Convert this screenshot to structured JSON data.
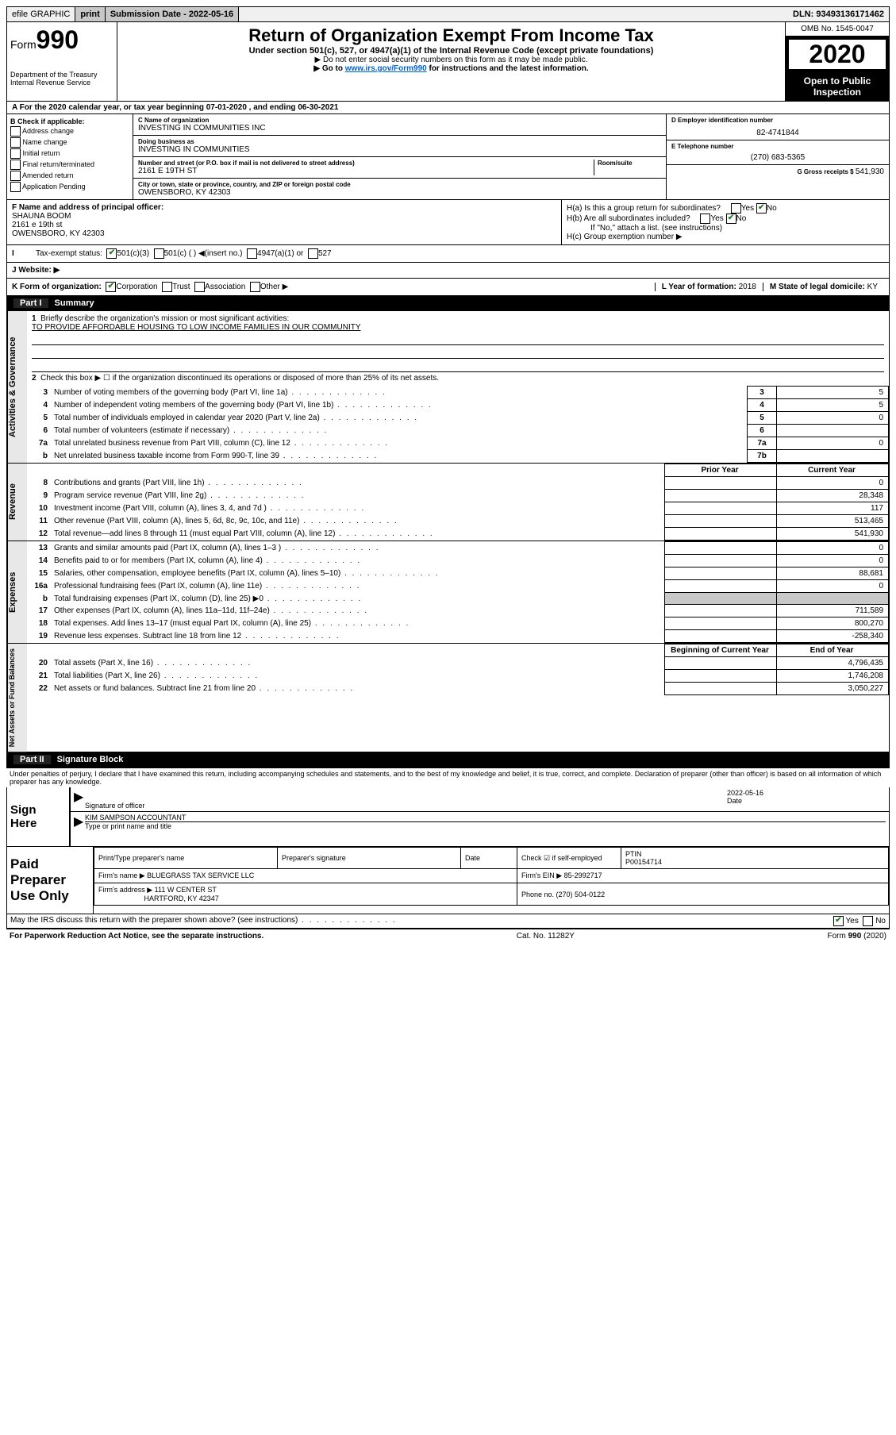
{
  "topbar": {
    "efile": "efile GRAPHIC",
    "print": "print",
    "submission_label": "Submission Date - ",
    "submission_date": "2022-05-16",
    "dln_label": "DLN: ",
    "dln": "93493136171462"
  },
  "header": {
    "form_label": "Form",
    "form_num": "990",
    "dept1": "Department of the Treasury",
    "dept2": "Internal Revenue Service",
    "title": "Return of Organization Exempt From Income Tax",
    "subtitle": "Under section 501(c), 527, or 4947(a)(1) of the Internal Revenue Code (except private foundations)",
    "note1": "▶ Do not enter social security numbers on this form as it may be made public.",
    "note2_pre": "▶ Go to ",
    "note2_link": "www.irs.gov/Form990",
    "note2_post": " for instructions and the latest information.",
    "omb": "OMB No. 1545-0047",
    "year": "2020",
    "open_public": "Open to Public Inspection"
  },
  "row_a": "A For the 2020 calendar year, or tax year beginning 07-01-2020    , and ending 06-30-2021",
  "box_b": {
    "label": "B Check if applicable:",
    "opts": [
      "Address change",
      "Name change",
      "Initial return",
      "Final return/terminated",
      "Amended return",
      "Application Pending"
    ]
  },
  "box_c": {
    "name_label": "C Name of organization",
    "name": "INVESTING IN COMMUNITIES INC",
    "dba_label": "Doing business as",
    "dba": "INVESTING IN COMMUNITIES",
    "addr_label": "Number and street (or P.O. box if mail is not delivered to street address)",
    "room_label": "Room/suite",
    "addr": "2161 E 19TH ST",
    "city_label": "City or town, state or province, country, and ZIP or foreign postal code",
    "city": "OWENSBORO, KY  42303"
  },
  "box_d": {
    "label": "D Employer identification number",
    "value": "82-4741844"
  },
  "box_e": {
    "label": "E Telephone number",
    "value": "(270) 683-5365"
  },
  "box_g": {
    "label": "G Gross receipts $ ",
    "value": "541,930"
  },
  "box_f": {
    "label": "F  Name and address of principal officer:",
    "name": "SHAUNA BOOM",
    "addr1": "2161 e 19th st",
    "addr2": "OWENSBORO, KY  42303"
  },
  "box_h": {
    "ha": "H(a)  Is this a group return for subordinates?",
    "hb": "H(b)  Are all subordinates included?",
    "hb_note": "If \"No,\" attach a list. (see instructions)",
    "hc": "H(c)  Group exemption number ▶",
    "yes": "Yes",
    "no": "No"
  },
  "row_i": {
    "label": "Tax-exempt status:",
    "opts": [
      "501(c)(3)",
      "501(c) (  ) ◀(insert no.)",
      "4947(a)(1) or",
      "527"
    ]
  },
  "row_j": "J   Website: ▶",
  "row_k": {
    "label": "K Form of organization:",
    "opts": [
      "Corporation",
      "Trust",
      "Association",
      "Other ▶"
    ],
    "l_label": "L Year of formation: ",
    "l_val": "2018",
    "m_label": "M State of legal domicile: ",
    "m_val": "KY"
  },
  "part1": {
    "header": "Part I",
    "title": "Summary",
    "side_ag": "Activities & Governance",
    "side_rev": "Revenue",
    "side_exp": "Expenses",
    "side_na": "Net Assets or Fund Balances",
    "line1": "Briefly describe the organization's mission or most significant activities:",
    "line1_text": "TO PROVIDE AFFORDABLE HOUSING TO LOW INCOME FAMILIES IN OUR COMMUNITY",
    "line2": "Check this box ▶ ☐  if the organization discontinued its operations or disposed of more than 25% of its net assets.",
    "rows_ag": [
      {
        "n": "3",
        "t": "Number of voting members of the governing body (Part VI, line 1a)",
        "ref": "3",
        "v": "5"
      },
      {
        "n": "4",
        "t": "Number of independent voting members of the governing body (Part VI, line 1b)",
        "ref": "4",
        "v": "5"
      },
      {
        "n": "5",
        "t": "Total number of individuals employed in calendar year 2020 (Part V, line 2a)",
        "ref": "5",
        "v": "0"
      },
      {
        "n": "6",
        "t": "Total number of volunteers (estimate if necessary)",
        "ref": "6",
        "v": ""
      },
      {
        "n": "7a",
        "t": "Total unrelated business revenue from Part VIII, column (C), line 12",
        "ref": "7a",
        "v": "0"
      },
      {
        "n": "b",
        "t": "Net unrelated business taxable income from Form 990-T, line 39",
        "ref": "7b",
        "v": ""
      }
    ],
    "col_prior": "Prior Year",
    "col_current": "Current Year",
    "rows_rev": [
      {
        "n": "8",
        "t": "Contributions and grants (Part VIII, line 1h)",
        "p": "",
        "c": "0"
      },
      {
        "n": "9",
        "t": "Program service revenue (Part VIII, line 2g)",
        "p": "",
        "c": "28,348"
      },
      {
        "n": "10",
        "t": "Investment income (Part VIII, column (A), lines 3, 4, and 7d )",
        "p": "",
        "c": "117"
      },
      {
        "n": "11",
        "t": "Other revenue (Part VIII, column (A), lines 5, 6d, 8c, 9c, 10c, and 11e)",
        "p": "",
        "c": "513,465"
      },
      {
        "n": "12",
        "t": "Total revenue—add lines 8 through 11 (must equal Part VIII, column (A), line 12)",
        "p": "",
        "c": "541,930"
      }
    ],
    "rows_exp": [
      {
        "n": "13",
        "t": "Grants and similar amounts paid (Part IX, column (A), lines 1–3 )",
        "p": "",
        "c": "0"
      },
      {
        "n": "14",
        "t": "Benefits paid to or for members (Part IX, column (A), line 4)",
        "p": "",
        "c": "0"
      },
      {
        "n": "15",
        "t": "Salaries, other compensation, employee benefits (Part IX, column (A), lines 5–10)",
        "p": "",
        "c": "88,681"
      },
      {
        "n": "16a",
        "t": "Professional fundraising fees (Part IX, column (A), line 11e)",
        "p": "",
        "c": "0"
      },
      {
        "n": "b",
        "t": "Total fundraising expenses (Part IX, column (D), line 25) ▶0",
        "p": "shaded",
        "c": "shaded"
      },
      {
        "n": "17",
        "t": "Other expenses (Part IX, column (A), lines 11a–11d, 11f–24e)",
        "p": "",
        "c": "711,589"
      },
      {
        "n": "18",
        "t": "Total expenses. Add lines 13–17 (must equal Part IX, column (A), line 25)",
        "p": "",
        "c": "800,270"
      },
      {
        "n": "19",
        "t": "Revenue less expenses. Subtract line 18 from line 12",
        "p": "",
        "c": "-258,340"
      }
    ],
    "col_begin": "Beginning of Current Year",
    "col_end": "End of Year",
    "rows_na": [
      {
        "n": "20",
        "t": "Total assets (Part X, line 16)",
        "p": "",
        "c": "4,796,435"
      },
      {
        "n": "21",
        "t": "Total liabilities (Part X, line 26)",
        "p": "",
        "c": "1,746,208"
      },
      {
        "n": "22",
        "t": "Net assets or fund balances. Subtract line 21 from line 20",
        "p": "",
        "c": "3,050,227"
      }
    ]
  },
  "part2": {
    "header": "Part II",
    "title": "Signature Block",
    "penalties": "Under penalties of perjury, I declare that I have examined this return, including accompanying schedules and statements, and to the best of my knowledge and belief, it is true, correct, and complete. Declaration of preparer (other than officer) is based on all information of which preparer has any knowledge.",
    "sign_here": "Sign Here",
    "sig_officer": "Signature of officer",
    "date_label": "Date",
    "sig_date": "2022-05-16",
    "officer_name": "KIM SAMPSON  ACCOUNTANT",
    "type_name": "Type or print name and title",
    "paid": "Paid Preparer Use Only",
    "prep_name_label": "Print/Type preparer's name",
    "prep_sig_label": "Preparer's signature",
    "check_self": "Check ☑ if self-employed",
    "ptin_label": "PTIN",
    "ptin": "P00154714",
    "firm_name_label": "Firm's name      ▶ ",
    "firm_name": "BLUEGRASS TAX SERVICE LLC",
    "firm_ein_label": "Firm's EIN ▶ ",
    "firm_ein": "85-2992717",
    "firm_addr_label": "Firm's address ▶ ",
    "firm_addr1": "111 W CENTER ST",
    "firm_addr2": "HARTFORD, KY  42347",
    "phone_label": "Phone no. ",
    "phone": "(270) 504-0122",
    "discuss": "May the IRS discuss this return with the preparer shown above? (see instructions)",
    "yes": "Yes",
    "no": "No"
  },
  "footer": {
    "paperwork": "For Paperwork Reduction Act Notice, see the separate instructions.",
    "cat": "Cat. No. 11282Y",
    "form": "Form 990 (2020)"
  }
}
